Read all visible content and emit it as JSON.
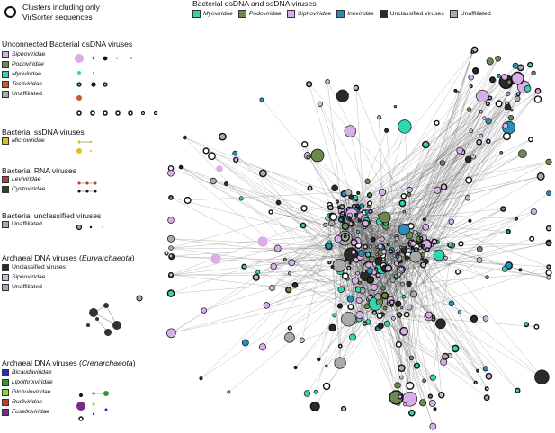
{
  "cluster_note": {
    "line1": "Clusters including only",
    "line2": "VirSorter sequences"
  },
  "top_legend": {
    "title": "Bacterial dsDNA and ssDNA viruses",
    "items": [
      {
        "label": "Myoviridae",
        "color": "#2bd8b0",
        "italic": true
      },
      {
        "label": "Podoviridae",
        "color": "#6b8a4e",
        "italic": true
      },
      {
        "label": "Siphoviridae",
        "color": "#d8aee8",
        "italic": true
      },
      {
        "label": "Inoviridae",
        "color": "#2a8fb8",
        "italic": true
      },
      {
        "label": "Unclassified viruses",
        "color": "#2a2a2a",
        "italic": false
      },
      {
        "label": "Unaffiliated",
        "color": "#aaaaaa",
        "italic": false
      }
    ]
  },
  "groups": {
    "unconnected_bacterial_dsdna": {
      "title": "Unconnected Bacterial dsDNA viruses",
      "items": [
        {
          "label": "Siphoviridae",
          "color": "#d8aee8",
          "italic": true
        },
        {
          "label": "Podoviridae",
          "color": "#6b8a4e",
          "italic": true
        },
        {
          "label": "Myoviridae",
          "color": "#2bd8b0",
          "italic": true
        },
        {
          "label": "Tectiviridae",
          "color": "#d2552a",
          "italic": true
        },
        {
          "label": "Unaffiliated",
          "color": "#aaaaaa",
          "italic": false
        }
      ]
    },
    "bacterial_ssdna": {
      "title": "Bacterial ssDNA viruses",
      "items": [
        {
          "label": "Microviridae",
          "color": "#d8c21a",
          "italic": true
        }
      ]
    },
    "bacterial_rna": {
      "title": "Bacterial RNA viruses",
      "items": [
        {
          "label": "Leviviridae",
          "color": "#c0392b",
          "italic": true
        },
        {
          "label": "Cystoviridae",
          "color": "#234a2a",
          "italic": true
        }
      ]
    },
    "bacterial_unclassified": {
      "title": "Bacterial unclassified viruses",
      "items": [
        {
          "label": "Unaffiliated",
          "color": "#aaaaaa",
          "italic": false
        }
      ]
    },
    "archaeal_eury": {
      "title_pre": "Archaeal DNA viruses (",
      "title_it": "Euryarchaeota",
      "title_post": ")",
      "items": [
        {
          "label": "Unclassified viruses",
          "color": "#2a2a2a",
          "italic": false
        },
        {
          "label": "Siphoviridae",
          "color": "#d8aee8",
          "italic": true
        },
        {
          "label": "Unaffiliated",
          "color": "#aaaaaa",
          "italic": false
        }
      ]
    },
    "archaeal_cren": {
      "title_pre": "Archaeal DNA viruses (",
      "title_it": "Crenarchaeota",
      "title_post": ")",
      "items": [
        {
          "label": "Bicaudaviridae",
          "color": "#1f2bd8",
          "italic": true
        },
        {
          "label": "Lipothrixviridae",
          "color": "#2a9a2a",
          "italic": true
        },
        {
          "label": "Globuloviridae",
          "color": "#8ad82a",
          "italic": true
        },
        {
          "label": "Rudiviridae",
          "color": "#c8382a",
          "italic": true
        },
        {
          "label": "Fuselloviridae",
          "color": "#7a2a8a",
          "italic": true
        }
      ]
    }
  }
}
